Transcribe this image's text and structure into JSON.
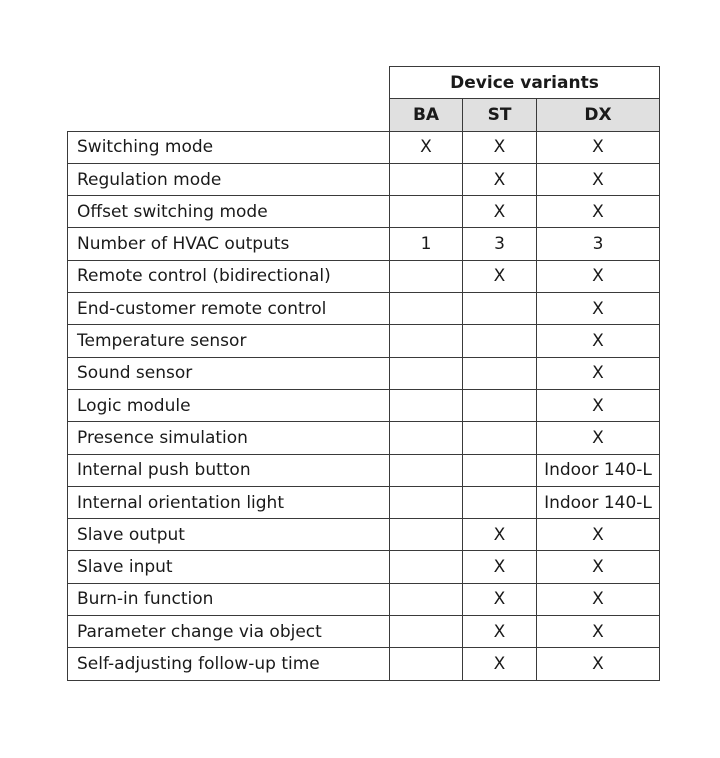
{
  "header": {
    "group": "Device variants",
    "columns": [
      "BA",
      "ST",
      "DX"
    ]
  },
  "rows": [
    {
      "feature": "Switching mode",
      "values": [
        "X",
        "X",
        "X"
      ]
    },
    {
      "feature": "Regulation mode",
      "values": [
        "",
        "X",
        "X"
      ]
    },
    {
      "feature": "Offset switching mode",
      "values": [
        "",
        "X",
        "X"
      ]
    },
    {
      "feature": "Number of HVAC outputs",
      "values": [
        "1",
        "3",
        "3"
      ]
    },
    {
      "feature": "Remote control (bidirectional)",
      "values": [
        "",
        "X",
        "X"
      ]
    },
    {
      "feature": "End-customer remote control",
      "values": [
        "",
        "",
        "X"
      ]
    },
    {
      "feature": "Temperature sensor",
      "values": [
        "",
        "",
        "X"
      ]
    },
    {
      "feature": "Sound sensor",
      "values": [
        "",
        "",
        "X"
      ]
    },
    {
      "feature": "Logic module",
      "values": [
        "",
        "",
        "X"
      ]
    },
    {
      "feature": "Presence simulation",
      "values": [
        "",
        "",
        "X"
      ]
    },
    {
      "feature": "Internal push button",
      "values": [
        "",
        "",
        "Indoor 140-L"
      ]
    },
    {
      "feature": "Internal orientation light",
      "values": [
        "",
        "",
        "Indoor 140-L"
      ]
    },
    {
      "feature": "Slave output",
      "values": [
        "",
        "X",
        "X"
      ]
    },
    {
      "feature": "Slave input",
      "values": [
        "",
        "X",
        "X"
      ]
    },
    {
      "feature": "Burn-in function",
      "values": [
        "",
        "X",
        "X"
      ]
    },
    {
      "feature": "Parameter change via object",
      "values": [
        "",
        "X",
        "X"
      ]
    },
    {
      "feature": "Self-adjusting follow-up time",
      "values": [
        "",
        "X",
        "X"
      ]
    }
  ]
}
